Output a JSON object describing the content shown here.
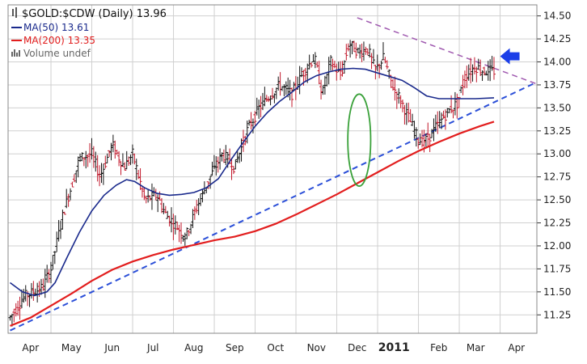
{
  "chart_data": {
    "type": "line",
    "title": "$GOLD:$CDW (Daily) 13.96",
    "title_icon": "candlestick-icon",
    "legend": [
      {
        "label": "MA(50) 13.61",
        "color": "#1a2a8c",
        "kind": "line"
      },
      {
        "label": "MA(200) 13.35",
        "color": "#e21e1e",
        "kind": "line"
      },
      {
        "label": "Volume undef",
        "color": "#666666",
        "kind": "bars"
      }
    ],
    "legend_placement": "top-left",
    "grid": true,
    "y_axis": {
      "side": "right",
      "ylim": [
        11.05,
        14.62
      ],
      "ticks": [
        "14.50",
        "14.25",
        "14.00",
        "13.75",
        "13.50",
        "13.25",
        "13.00",
        "12.75",
        "12.50",
        "12.25",
        "12.00",
        "11.75",
        "11.50",
        "11.25"
      ],
      "tick_values": [
        14.5,
        14.25,
        14.0,
        13.75,
        13.5,
        13.25,
        13.0,
        12.75,
        12.5,
        12.25,
        12.0,
        11.75,
        11.5,
        11.25
      ]
    },
    "x_axis": {
      "ticks": [
        {
          "label": "Apr",
          "x": 0.5,
          "bold": false
        },
        {
          "label": "May",
          "x": 1.5,
          "bold": false
        },
        {
          "label": "Jun",
          "x": 2.5,
          "bold": false
        },
        {
          "label": "Jul",
          "x": 3.5,
          "bold": false
        },
        {
          "label": "Aug",
          "x": 4.5,
          "bold": false
        },
        {
          "label": "Sep",
          "x": 5.5,
          "bold": false
        },
        {
          "label": "Oct",
          "x": 6.5,
          "bold": false
        },
        {
          "label": "Nov",
          "x": 7.5,
          "bold": false
        },
        {
          "label": "Dec",
          "x": 8.5,
          "bold": false
        },
        {
          "label": "2011",
          "x": 9.4,
          "bold": true
        },
        {
          "label": "Feb",
          "x": 10.5,
          "bold": false
        },
        {
          "label": "Mar",
          "x": 11.4,
          "bold": false
        },
        {
          "label": "Apr",
          "x": 12.4,
          "bold": false
        }
      ],
      "month_gridlines": [
        1.0,
        2.0,
        3.0,
        4.0,
        5.0,
        6.0,
        7.0,
        8.0,
        9.0,
        10.0,
        11.0,
        12.0
      ],
      "xlim": [
        -0.05,
        12.9
      ]
    },
    "series": [
      {
        "name": "price",
        "color": "#9b1b1b",
        "style": "ohlc",
        "anchors": [
          [
            0.0,
            11.22
          ],
          [
            0.35,
            11.45
          ],
          [
            0.8,
            11.55
          ],
          [
            1.0,
            11.75
          ],
          [
            1.3,
            12.35
          ],
          [
            1.7,
            12.95
          ],
          [
            2.0,
            13.0
          ],
          [
            2.2,
            12.75
          ],
          [
            2.5,
            13.1
          ],
          [
            2.8,
            12.85
          ],
          [
            3.0,
            13.0
          ],
          [
            3.3,
            12.5
          ],
          [
            3.6,
            12.55
          ],
          [
            3.8,
            12.35
          ],
          [
            4.0,
            12.25
          ],
          [
            4.3,
            12.1
          ],
          [
            4.6,
            12.45
          ],
          [
            4.9,
            12.75
          ],
          [
            5.2,
            13.0
          ],
          [
            5.5,
            12.85
          ],
          [
            5.8,
            13.25
          ],
          [
            6.1,
            13.5
          ],
          [
            6.3,
            13.6
          ],
          [
            6.6,
            13.75
          ],
          [
            6.9,
            13.65
          ],
          [
            7.2,
            13.9
          ],
          [
            7.45,
            14.05
          ],
          [
            7.65,
            13.65
          ],
          [
            7.85,
            14.0
          ],
          [
            8.1,
            13.85
          ],
          [
            8.3,
            14.2
          ],
          [
            8.55,
            14.1
          ],
          [
            8.75,
            14.15
          ],
          [
            8.95,
            13.9
          ],
          [
            9.15,
            14.05
          ],
          [
            9.35,
            13.75
          ],
          [
            9.55,
            13.6
          ],
          [
            9.8,
            13.35
          ],
          [
            10.0,
            13.15
          ],
          [
            10.2,
            13.15
          ],
          [
            10.45,
            13.3
          ],
          [
            10.7,
            13.45
          ],
          [
            10.95,
            13.55
          ],
          [
            11.15,
            13.85
          ],
          [
            11.4,
            13.95
          ],
          [
            11.6,
            13.9
          ],
          [
            11.85,
            13.9
          ]
        ],
        "end_x": 11.85,
        "last_value": 13.96
      },
      {
        "name": "MA(50)",
        "color": "#1a2a8c",
        "style": "line",
        "points": [
          [
            0.0,
            11.6
          ],
          [
            0.3,
            11.5
          ],
          [
            0.6,
            11.46
          ],
          [
            0.9,
            11.5
          ],
          [
            1.1,
            11.6
          ],
          [
            1.4,
            11.88
          ],
          [
            1.7,
            12.15
          ],
          [
            2.0,
            12.38
          ],
          [
            2.3,
            12.55
          ],
          [
            2.6,
            12.66
          ],
          [
            2.85,
            12.72
          ],
          [
            3.05,
            12.7
          ],
          [
            3.3,
            12.63
          ],
          [
            3.6,
            12.57
          ],
          [
            3.9,
            12.55
          ],
          [
            4.2,
            12.56
          ],
          [
            4.5,
            12.58
          ],
          [
            4.8,
            12.63
          ],
          [
            5.1,
            12.73
          ],
          [
            5.4,
            12.93
          ],
          [
            5.7,
            13.12
          ],
          [
            6.0,
            13.3
          ],
          [
            6.3,
            13.45
          ],
          [
            6.6,
            13.57
          ],
          [
            6.9,
            13.67
          ],
          [
            7.2,
            13.78
          ],
          [
            7.5,
            13.85
          ],
          [
            7.8,
            13.89
          ],
          [
            8.1,
            13.92
          ],
          [
            8.4,
            13.93
          ],
          [
            8.7,
            13.92
          ],
          [
            9.0,
            13.88
          ],
          [
            9.3,
            13.84
          ],
          [
            9.6,
            13.8
          ],
          [
            9.9,
            13.72
          ],
          [
            10.2,
            13.63
          ],
          [
            10.5,
            13.6
          ],
          [
            10.8,
            13.6
          ],
          [
            11.1,
            13.6
          ],
          [
            11.4,
            13.6
          ],
          [
            11.85,
            13.61
          ]
        ]
      },
      {
        "name": "MA(200)",
        "color": "#e21e1e",
        "style": "line",
        "points": [
          [
            0.0,
            11.13
          ],
          [
            0.5,
            11.22
          ],
          [
            1.0,
            11.35
          ],
          [
            1.5,
            11.48
          ],
          [
            2.0,
            11.62
          ],
          [
            2.5,
            11.74
          ],
          [
            3.0,
            11.83
          ],
          [
            3.5,
            11.9
          ],
          [
            4.0,
            11.96
          ],
          [
            4.5,
            12.01
          ],
          [
            5.0,
            12.06
          ],
          [
            5.5,
            12.1
          ],
          [
            6.0,
            12.16
          ],
          [
            6.5,
            12.24
          ],
          [
            7.0,
            12.34
          ],
          [
            7.5,
            12.45
          ],
          [
            8.0,
            12.56
          ],
          [
            8.5,
            12.68
          ],
          [
            9.0,
            12.8
          ],
          [
            9.5,
            12.92
          ],
          [
            10.0,
            13.03
          ],
          [
            10.5,
            13.13
          ],
          [
            11.0,
            13.22
          ],
          [
            11.5,
            13.3
          ],
          [
            11.85,
            13.35
          ]
        ]
      }
    ],
    "annotations": [
      {
        "name": "support-trendline",
        "style": "dashed",
        "color": "#2b4fd8",
        "from": [
          0.0,
          11.08
        ],
        "to": [
          12.9,
          13.78
        ]
      },
      {
        "name": "resistance-trendline",
        "style": "dashed",
        "color": "#a05ab0",
        "from": [
          8.5,
          14.48
        ],
        "to": [
          12.9,
          13.76
        ]
      },
      {
        "name": "highlight-ellipse",
        "color": "#3aa13a",
        "center": [
          8.55,
          13.15
        ],
        "rx": 0.28,
        "ry": 0.5
      },
      {
        "name": "pointer-arrow",
        "color": "#1c3fe8",
        "direction": "left",
        "at": [
          12.0,
          14.06
        ]
      }
    ]
  }
}
